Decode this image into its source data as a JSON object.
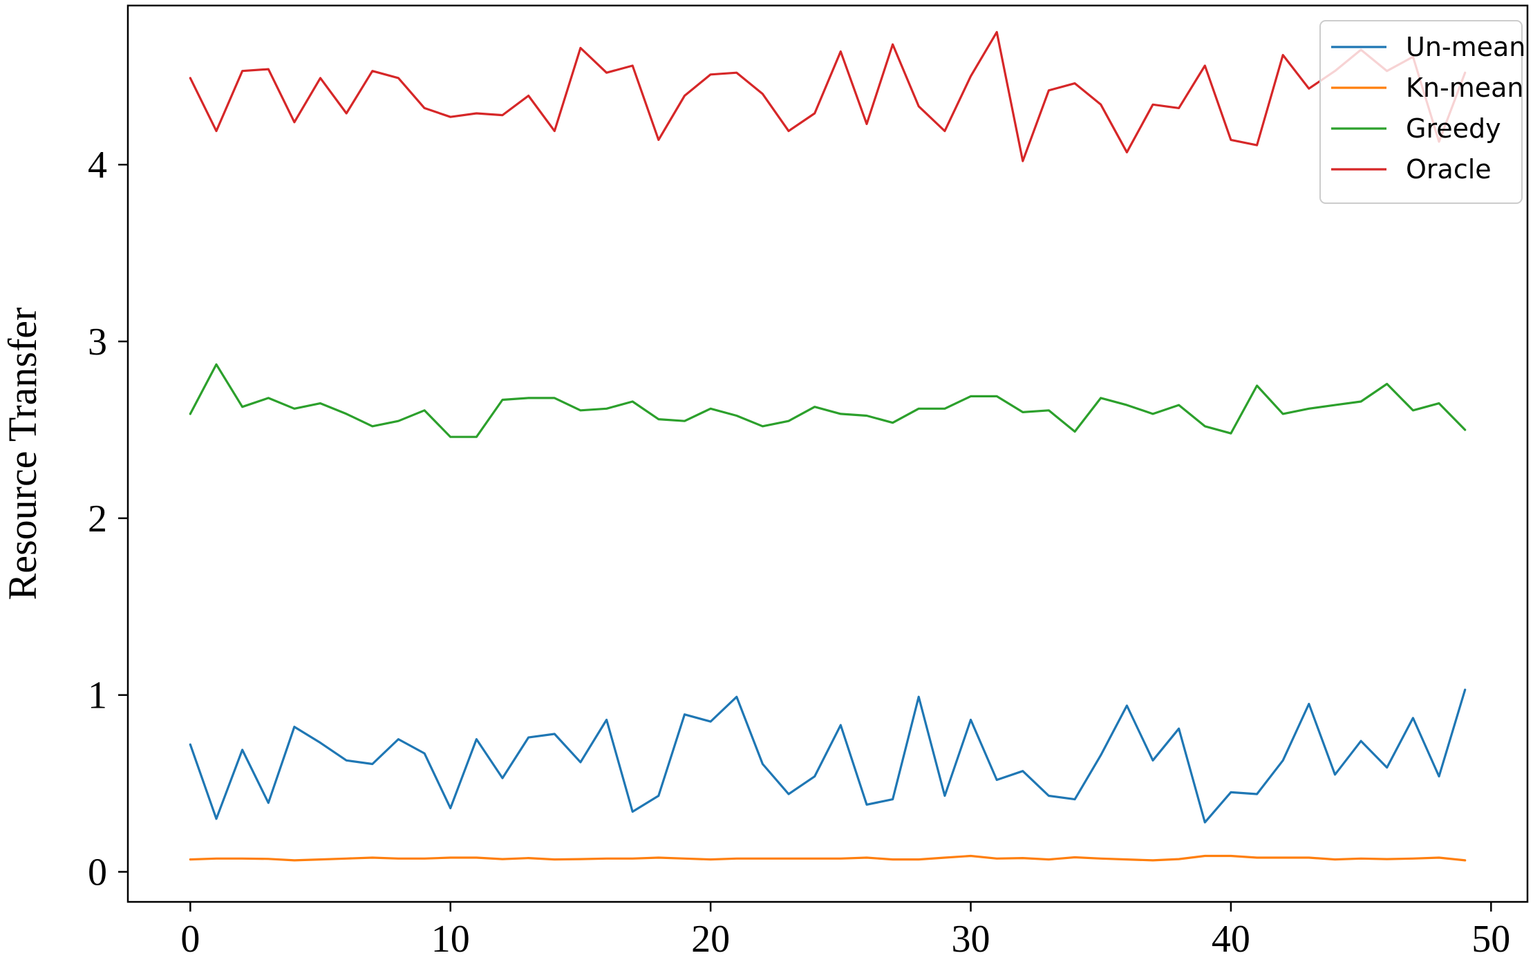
{
  "chart_data": {
    "type": "line",
    "title": "",
    "xlabel": "",
    "ylabel": "Resource Transfer",
    "xlim": [
      -2.4,
      51.4
    ],
    "ylim": [
      -0.17,
      4.9
    ],
    "xticks": [
      0,
      10,
      20,
      30,
      40,
      50
    ],
    "yticks": [
      0,
      1,
      2,
      3,
      4
    ],
    "grid": false,
    "legend_position": "top-right",
    "x": [
      0,
      1,
      2,
      3,
      4,
      5,
      6,
      7,
      8,
      9,
      10,
      11,
      12,
      13,
      14,
      15,
      16,
      17,
      18,
      19,
      20,
      21,
      22,
      23,
      24,
      25,
      26,
      27,
      28,
      29,
      30,
      31,
      32,
      33,
      34,
      35,
      36,
      37,
      38,
      39,
      40,
      41,
      42,
      43,
      44,
      45,
      46,
      47,
      48,
      49
    ],
    "series": [
      {
        "name": "Un-mean",
        "color": "#1f77b4",
        "values": [
          0.72,
          0.3,
          0.69,
          0.39,
          0.82,
          0.73,
          0.63,
          0.61,
          0.75,
          0.67,
          0.36,
          0.75,
          0.53,
          0.76,
          0.78,
          0.62,
          0.86,
          0.34,
          0.43,
          0.89,
          0.85,
          0.99,
          0.61,
          0.44,
          0.54,
          0.83,
          0.38,
          0.41,
          0.99,
          0.43,
          0.86,
          0.52,
          0.57,
          0.43,
          0.41,
          0.66,
          0.94,
          0.63,
          0.81,
          0.28,
          0.45,
          0.44,
          0.63,
          0.95,
          0.55,
          0.74,
          0.59,
          0.87,
          0.54,
          1.03
        ]
      },
      {
        "name": "Kn-mean",
        "color": "#ff7f0e",
        "values": [
          0.07,
          0.075,
          0.075,
          0.073,
          0.065,
          0.07,
          0.075,
          0.08,
          0.075,
          0.075,
          0.08,
          0.08,
          0.072,
          0.078,
          0.07,
          0.072,
          0.075,
          0.075,
          0.08,
          0.075,
          0.07,
          0.075,
          0.075,
          0.075,
          0.075,
          0.075,
          0.08,
          0.07,
          0.07,
          0.08,
          0.09,
          0.075,
          0.078,
          0.07,
          0.082,
          0.075,
          0.07,
          0.065,
          0.072,
          0.09,
          0.09,
          0.08,
          0.08,
          0.08,
          0.07,
          0.075,
          0.072,
          0.075,
          0.08,
          0.065
        ]
      },
      {
        "name": "Greedy",
        "color": "#2ca02c",
        "values": [
          2.59,
          2.87,
          2.63,
          2.68,
          2.62,
          2.65,
          2.59,
          2.52,
          2.55,
          2.61,
          2.46,
          2.46,
          2.67,
          2.68,
          2.68,
          2.61,
          2.62,
          2.66,
          2.56,
          2.55,
          2.62,
          2.58,
          2.52,
          2.55,
          2.63,
          2.59,
          2.58,
          2.54,
          2.62,
          2.62,
          2.69,
          2.69,
          2.6,
          2.61,
          2.49,
          2.68,
          2.64,
          2.59,
          2.64,
          2.52,
          2.48,
          2.75,
          2.59,
          2.62,
          2.64,
          2.66,
          2.76,
          2.61,
          2.65,
          2.5
        ]
      },
      {
        "name": "Oracle",
        "color": "#d62728",
        "values": [
          4.49,
          4.19,
          4.53,
          4.54,
          4.24,
          4.49,
          4.29,
          4.53,
          4.49,
          4.32,
          4.27,
          4.29,
          4.28,
          4.39,
          4.19,
          4.66,
          4.52,
          4.56,
          4.14,
          4.39,
          4.51,
          4.52,
          4.4,
          4.19,
          4.29,
          4.64,
          4.23,
          4.68,
          4.33,
          4.19,
          4.5,
          4.75,
          4.02,
          4.42,
          4.46,
          4.34,
          4.07,
          4.34,
          4.32,
          4.56,
          4.14,
          4.11,
          4.62,
          4.43,
          4.53,
          4.65,
          4.53,
          4.61,
          4.13,
          4.52
        ]
      }
    ]
  }
}
